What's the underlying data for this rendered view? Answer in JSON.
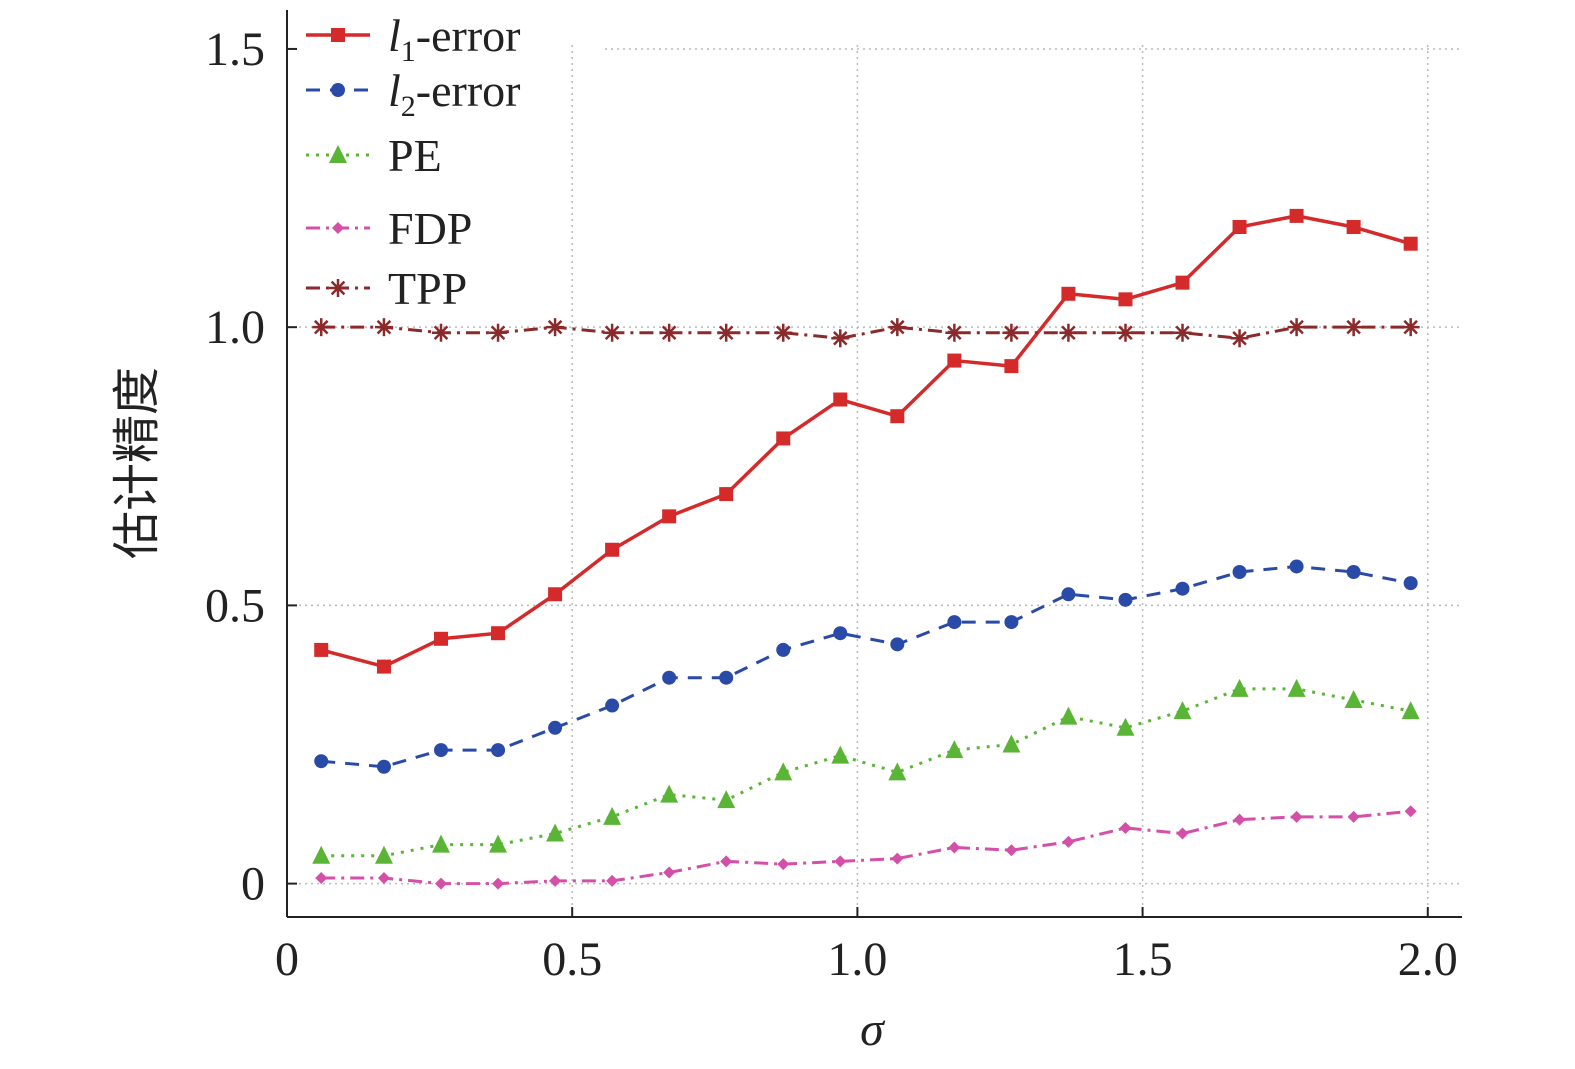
{
  "chart_data": {
    "type": "line",
    "xlabel": "σ",
    "ylabel": "估计精度",
    "xlim": [
      0,
      2.06
    ],
    "ylim": [
      -0.06,
      1.57
    ],
    "xticks": [
      "0",
      "0.5",
      "1.0",
      "1.5",
      "2.0"
    ],
    "yticks": [
      "0",
      "0.5",
      "1.0",
      "1.5"
    ],
    "grid": true,
    "legend_position": "top-left",
    "x": [
      0.06,
      0.17,
      0.27,
      0.37,
      0.47,
      0.57,
      0.67,
      0.77,
      0.87,
      0.97,
      1.07,
      1.17,
      1.27,
      1.37,
      1.47,
      1.57,
      1.67,
      1.77,
      1.87,
      1.97
    ],
    "series": [
      {
        "name": "l1-error",
        "label_main": "l",
        "label_sub": "1",
        "label_rest": "-error",
        "color": "#d42a2a",
        "dash": "",
        "marker": "square",
        "values": [
          0.42,
          0.39,
          0.44,
          0.45,
          0.52,
          0.6,
          0.66,
          0.7,
          0.8,
          0.87,
          0.84,
          0.94,
          0.93,
          1.06,
          1.05,
          1.08,
          1.18,
          1.2,
          1.18,
          1.15
        ]
      },
      {
        "name": "l2-error",
        "label_main": "l",
        "label_sub": "2",
        "label_rest": "-error",
        "color": "#2a4aa8",
        "dash": "14,10",
        "marker": "circle",
        "values": [
          0.22,
          0.21,
          0.24,
          0.24,
          0.28,
          0.32,
          0.37,
          0.37,
          0.42,
          0.45,
          0.43,
          0.47,
          0.47,
          0.52,
          0.51,
          0.53,
          0.56,
          0.57,
          0.56,
          0.54
        ]
      },
      {
        "name": "PE",
        "label_main": "PE",
        "label_sub": "",
        "label_rest": "",
        "color": "#5ab536",
        "dash": "3,7",
        "marker": "triangle",
        "values": [
          0.05,
          0.05,
          0.07,
          0.07,
          0.09,
          0.12,
          0.16,
          0.15,
          0.2,
          0.23,
          0.2,
          0.24,
          0.25,
          0.3,
          0.28,
          0.31,
          0.35,
          0.35,
          0.33,
          0.31
        ]
      },
      {
        "name": "FDP",
        "label_main": "FDP",
        "label_sub": "",
        "label_rest": "",
        "color": "#d44fa8",
        "dash": "14,6,3,6",
        "marker": "diamond",
        "values": [
          0.01,
          0.01,
          0.0,
          0.0,
          0.005,
          0.005,
          0.02,
          0.04,
          0.035,
          0.04,
          0.045,
          0.065,
          0.06,
          0.075,
          0.1,
          0.09,
          0.115,
          0.12,
          0.12,
          0.13
        ]
      },
      {
        "name": "TPP",
        "label_main": "TPP",
        "label_sub": "",
        "label_rest": "",
        "color": "#8a2a2a",
        "dash": "14,6,3,6",
        "marker": "star",
        "values": [
          1.0,
          1.0,
          0.99,
          0.99,
          1.0,
          0.99,
          0.99,
          0.99,
          0.99,
          0.98,
          1.0,
          0.99,
          0.99,
          0.99,
          0.99,
          0.99,
          0.98,
          1.0,
          1.0,
          1.0
        ]
      }
    ]
  }
}
